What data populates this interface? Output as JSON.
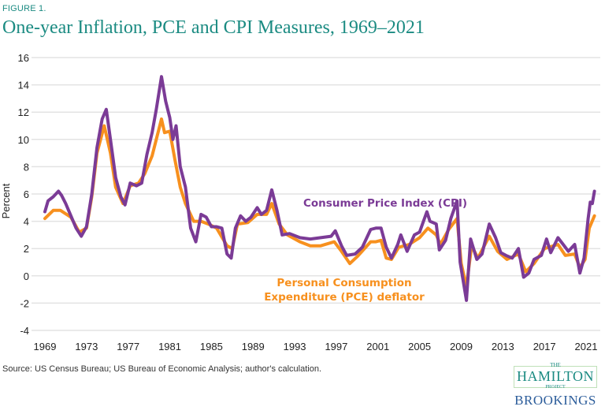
{
  "figure_label": "FIGURE 1.",
  "source": "Source: US Census Bureau; US Bureau of Economic Analysis; author's calculation.",
  "logo": {
    "the": "THE",
    "hamilton": "HAMILTON",
    "project": "PROJECT",
    "brookings": "BROOKINGS"
  },
  "colors": {
    "cpi": "#7b3b96",
    "pce": "#f7901e",
    "title": "#1b8b82",
    "grid": "#e3e3e3"
  },
  "chart_data": {
    "type": "line",
    "title": "One-year Inflation, PCE and CPI Measures, 1969–2021",
    "xlabel": "",
    "ylabel": "Percent",
    "xlim": [
      1969,
      2022
    ],
    "ylim": [
      -4,
      16
    ],
    "grid": true,
    "xticks": [
      "1969",
      "1973",
      "1977",
      "1981",
      "1985",
      "1989",
      "1993",
      "1997",
      "2001",
      "2005",
      "2009",
      "2013",
      "2017",
      "2021"
    ],
    "yticks": [
      "-4",
      "-2",
      "0",
      "2",
      "4",
      "6",
      "8",
      "10",
      "12",
      "14",
      "16"
    ],
    "series": [
      {
        "name": "Consumer Price Index (CPI)",
        "color": "#7b3b96",
        "x": [
          1969.0,
          1969.3,
          1969.8,
          1970.3,
          1970.6,
          1971.0,
          1971.5,
          1972.0,
          1972.5,
          1973.0,
          1973.5,
          1974.0,
          1974.5,
          1974.9,
          1975.3,
          1975.8,
          1976.3,
          1976.7,
          1977.2,
          1977.8,
          1978.3,
          1978.8,
          1979.3,
          1979.7,
          1980.2,
          1980.6,
          1981.0,
          1981.3,
          1981.6,
          1982.0,
          1982.5,
          1983.0,
          1983.5,
          1984.0,
          1984.5,
          1985.0,
          1985.5,
          1986.0,
          1986.5,
          1986.9,
          1987.3,
          1987.8,
          1988.3,
          1988.8,
          1989.4,
          1989.8,
          1990.3,
          1990.8,
          1991.3,
          1991.8,
          1992.5,
          1993.5,
          1994.5,
          1995.5,
          1996.5,
          1996.9,
          1997.5,
          1998.0,
          1998.8,
          1999.5,
          2000.3,
          2000.8,
          2001.3,
          2001.8,
          2002.3,
          2002.9,
          2003.2,
          2003.8,
          2004.5,
          2005.0,
          2005.7,
          2006.0,
          2006.6,
          2006.9,
          2007.5,
          2008.0,
          2008.6,
          2008.9,
          2009.5,
          2009.9,
          2010.5,
          2011.0,
          2011.7,
          2012.3,
          2012.8,
          2013.3,
          2013.9,
          2014.5,
          2015.0,
          2015.5,
          2016.0,
          2016.7,
          2017.2,
          2017.6,
          2018.3,
          2018.8,
          2019.3,
          2019.9,
          2020.4,
          2020.8,
          2021.2,
          2021.4,
          2021.6,
          2021.8
        ],
        "y": [
          4.7,
          5.5,
          5.8,
          6.2,
          5.9,
          5.3,
          4.4,
          3.5,
          2.9,
          3.6,
          6.0,
          9.4,
          11.5,
          12.2,
          10.0,
          7.2,
          5.8,
          5.2,
          6.8,
          6.6,
          6.8,
          8.9,
          10.5,
          12.2,
          14.6,
          12.8,
          11.6,
          10.0,
          11.0,
          8.0,
          6.5,
          3.5,
          2.5,
          4.5,
          4.3,
          3.6,
          3.6,
          3.5,
          1.6,
          1.3,
          3.5,
          4.4,
          4.0,
          4.3,
          5.0,
          4.5,
          4.8,
          6.3,
          4.8,
          3.0,
          3.1,
          2.8,
          2.7,
          2.8,
          2.9,
          3.3,
          2.2,
          1.5,
          1.6,
          2.1,
          3.4,
          3.5,
          3.5,
          2.1,
          1.3,
          2.3,
          3.0,
          1.8,
          3.0,
          3.2,
          4.7,
          4.0,
          3.8,
          1.9,
          2.6,
          4.2,
          5.5,
          1.0,
          -1.8,
          2.7,
          1.2,
          1.6,
          3.8,
          2.8,
          1.7,
          1.5,
          1.3,
          2.0,
          -0.1,
          0.2,
          1.2,
          1.5,
          2.7,
          1.7,
          2.8,
          2.3,
          1.8,
          2.3,
          0.2,
          1.3,
          4.2,
          5.4,
          5.3,
          6.2
        ]
      },
      {
        "name": "Personal Consumption Expenditure (PCE) deflator",
        "color": "#f7901e",
        "x": [
          1969.0,
          1969.8,
          1970.5,
          1971.5,
          1972.3,
          1973.0,
          1973.5,
          1974.0,
          1974.7,
          1975.3,
          1975.8,
          1976.5,
          1977.2,
          1978.0,
          1978.6,
          1979.3,
          1980.2,
          1980.5,
          1981.0,
          1981.5,
          1982.0,
          1982.5,
          1983.3,
          1984.0,
          1984.7,
          1985.5,
          1986.5,
          1987.0,
          1987.5,
          1988.5,
          1989.4,
          1990.3,
          1990.8,
          1991.5,
          1992.3,
          1993.5,
          1994.5,
          1995.5,
          1996.8,
          1997.5,
          1998.3,
          1999.0,
          2000.3,
          2000.8,
          2001.3,
          2001.8,
          2002.3,
          2003.0,
          2004.0,
          2005.0,
          2005.8,
          2006.6,
          2007.0,
          2007.8,
          2008.6,
          2009.0,
          2009.5,
          2010.0,
          2010.6,
          2011.7,
          2012.5,
          2013.4,
          2014.5,
          2015.2,
          2016.0,
          2017.0,
          2018.3,
          2019.0,
          2019.9,
          2020.4,
          2020.9,
          2021.3,
          2021.8
        ],
        "y": [
          4.2,
          4.8,
          4.8,
          4.3,
          3.2,
          3.5,
          5.8,
          9.0,
          11.0,
          9.0,
          6.5,
          5.3,
          6.6,
          6.8,
          7.5,
          8.8,
          11.5,
          10.5,
          10.6,
          8.5,
          6.5,
          5.3,
          4.0,
          4.0,
          3.8,
          3.5,
          2.2,
          2.0,
          3.8,
          3.9,
          4.5,
          4.5,
          5.3,
          3.8,
          3.0,
          2.5,
          2.2,
          2.2,
          2.5,
          1.8,
          0.9,
          1.4,
          2.5,
          2.5,
          2.6,
          1.3,
          1.2,
          2.1,
          2.3,
          2.8,
          3.5,
          3.0,
          2.3,
          3.4,
          4.2,
          0.9,
          -0.8,
          2.2,
          1.3,
          2.9,
          1.8,
          1.2,
          1.6,
          0.3,
          0.9,
          2.0,
          2.3,
          1.5,
          1.6,
          0.6,
          1.2,
          3.5,
          4.4
        ]
      }
    ],
    "annotations": {
      "cpi": "Consumer Price Index (CPI)",
      "pce_line1": "Personal Consumption",
      "pce_line2": "Expenditure (PCE) deflator"
    }
  }
}
